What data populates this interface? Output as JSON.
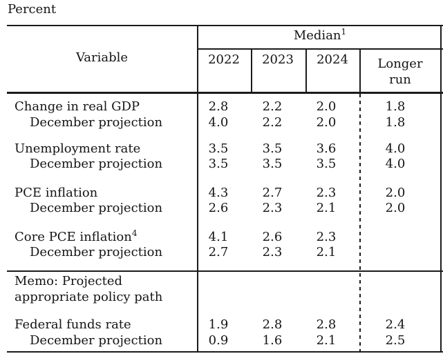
{
  "title": "Percent",
  "header": {
    "variable": "Variable",
    "median": "Median",
    "median_sup": "1",
    "years": [
      "2022",
      "2023",
      "2024"
    ],
    "longer_run_line1": "Longer",
    "longer_run_line2": "run"
  },
  "table": {
    "rows": [
      {
        "label": "Change in real GDP",
        "indent": false,
        "values": [
          "2.8",
          "2.2",
          "2.0",
          "1.8"
        ]
      },
      {
        "label": "December projection",
        "indent": true,
        "values": [
          "4.0",
          "2.2",
          "2.0",
          "1.8"
        ]
      },
      {
        "label": "Unemployment rate",
        "indent": false,
        "values": [
          "3.5",
          "3.5",
          "3.6",
          "4.0"
        ]
      },
      {
        "label": "December projection",
        "indent": true,
        "values": [
          "3.5",
          "3.5",
          "3.5",
          "4.0"
        ]
      },
      {
        "label": "PCE inflation",
        "indent": false,
        "values": [
          "4.3",
          "2.7",
          "2.3",
          "2.0"
        ]
      },
      {
        "label": "December projection",
        "indent": true,
        "values": [
          "2.6",
          "2.3",
          "2.1",
          "2.0"
        ]
      },
      {
        "label": "Core PCE inflation",
        "sup": "4",
        "indent": false,
        "values": [
          "4.1",
          "2.6",
          "2.3",
          ""
        ]
      },
      {
        "label": "December projection",
        "indent": true,
        "values": [
          "2.7",
          "2.3",
          "2.1",
          ""
        ]
      },
      {
        "label": "Federal funds rate",
        "indent": false,
        "values": [
          "1.9",
          "2.8",
          "2.8",
          "2.4"
        ]
      },
      {
        "label": "December projection",
        "indent": true,
        "values": [
          "0.9",
          "1.6",
          "2.1",
          "2.5"
        ]
      }
    ],
    "memo_line1": "Memo: Projected",
    "memo_line2": "appropriate policy path"
  },
  "colors": {
    "text": "#141414",
    "rule": "#1a1a1a",
    "background": "#ffffff"
  }
}
